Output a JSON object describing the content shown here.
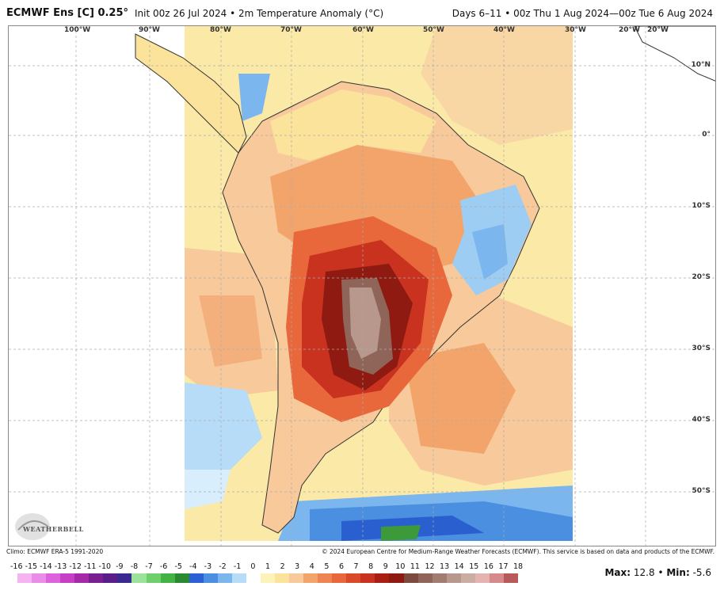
{
  "header": {
    "title": "ECMWF Ens [C] 0.25°",
    "init": "Init 00z 26 Jul 2024 • 2m Temperature Anomaly (°C)",
    "valid": "Days 6–11 • 00z Thu 1 Aug 2024—00z Tue 6 Aug 2024"
  },
  "map": {
    "lon_labels": [
      "100°W",
      "90°W",
      "80°W",
      "70°W",
      "60°W",
      "50°W",
      "40°W",
      "30°W",
      "20°W",
      "20°W"
    ],
    "lat_labels": [
      "10°N",
      "0°",
      "10°S",
      "20°S",
      "30°S",
      "40°S",
      "50°S"
    ],
    "logo_text": "WEATHERBELL",
    "colors": {
      "ocean_light": "#fde9a2",
      "pale_yellow": "#fbe9a8",
      "light_orange": "#f8c99a",
      "orange": "#f3a46b",
      "red_orange": "#e8683c",
      "red": "#c8321e",
      "dark_red": "#8e1a12",
      "brown": "#7c4a3e",
      "tan": "#b8978c",
      "light_blue": "#9ecdf4",
      "blue": "#4a8fe0",
      "dark_blue": "#2a5fd0",
      "green": "#3c9a3a"
    }
  },
  "footer": {
    "climo": "Climo: ECMWF ERA-5 1991-2020",
    "copyright": "© 2024 European Centre for Medium-Range Weather Forecasts (ECMWF). This service is based on data and products of the ECMWF."
  },
  "colorbar": {
    "labels": [
      "-16",
      "-15",
      "-14",
      "-13",
      "-12",
      "-11",
      "-10",
      "-9",
      "-8",
      "-7",
      "-6",
      "-5",
      "-4",
      "-3",
      "-2",
      "-1",
      "0",
      "1",
      "2",
      "3",
      "4",
      "5",
      "6",
      "7",
      "8",
      "9",
      "10",
      "11",
      "12",
      "13",
      "14",
      "15",
      "16",
      "17",
      "18"
    ],
    "colors": [
      "#f5b3f2",
      "#ea8de8",
      "#dc63db",
      "#c83fc7",
      "#a52aa8",
      "#7a1f8f",
      "#5a1e8a",
      "#3a2a90",
      "#9be39a",
      "#6fcf6a",
      "#43b443",
      "#2a8a30",
      "#2d5fd6",
      "#4a8fe0",
      "#7bb6ee",
      "#b6dcf8",
      "#ffffff",
      "#fdf2b8",
      "#fbe39b",
      "#f8c99a",
      "#f3a46b",
      "#ee8452",
      "#e8683c",
      "#d84a2a",
      "#c8321e",
      "#a91f14",
      "#8e1a12",
      "#7c4a3e",
      "#8f6559",
      "#a27c70",
      "#b8978c",
      "#ccada3",
      "#e6b3b3",
      "#d68a8a",
      "#b85a5a"
    ]
  },
  "stats": {
    "max_label": "Max:",
    "max_value": "12.8",
    "separator": "•",
    "min_label": "Min:",
    "min_value": "-5.6"
  }
}
